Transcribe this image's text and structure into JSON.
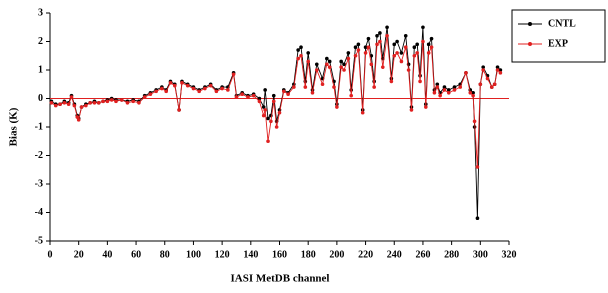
{
  "chart_data": {
    "type": "line",
    "xlabel": "IASI MetDB channel",
    "ylabel": "Bias (K)",
    "xlim": [
      0,
      320
    ],
    "xticks": [
      0,
      20,
      40,
      60,
      80,
      100,
      120,
      140,
      160,
      180,
      200,
      220,
      240,
      260,
      280,
      300,
      320
    ],
    "ylim": [
      -5,
      3
    ],
    "yticks": [
      -5,
      -4,
      -3,
      -2,
      -1,
      0,
      1,
      2,
      3
    ],
    "legend": "right",
    "x": [
      1,
      4,
      7,
      10,
      13,
      15,
      17,
      19,
      20,
      22,
      25,
      28,
      31,
      34,
      37,
      40,
      43,
      46,
      50,
      54,
      58,
      62,
      66,
      70,
      74,
      78,
      81,
      84,
      87,
      90,
      92,
      96,
      100,
      104,
      108,
      112,
      116,
      120,
      124,
      128,
      130,
      134,
      138,
      142,
      146,
      149,
      150,
      152,
      154,
      156,
      158,
      160,
      163,
      166,
      170,
      173,
      175,
      178,
      180,
      183,
      186,
      190,
      193,
      195,
      198,
      200,
      203,
      205,
      208,
      210,
      213,
      215,
      218,
      220,
      222,
      224,
      226,
      228,
      230,
      232,
      235,
      238,
      240,
      242,
      245,
      248,
      250,
      252,
      254,
      256,
      258,
      260,
      262,
      264,
      266,
      268,
      270,
      272,
      275,
      278,
      282,
      286,
      290,
      293,
      295,
      296,
      298,
      300,
      302,
      305,
      308,
      310,
      312,
      314
    ],
    "series": [
      {
        "name": "CNTL",
        "color": "#000000",
        "values": [
          -0.1,
          -0.2,
          -0.2,
          -0.1,
          -0.15,
          0.1,
          -0.2,
          -0.6,
          -0.7,
          -0.3,
          -0.2,
          -0.15,
          -0.1,
          -0.15,
          -0.1,
          -0.05,
          0,
          -0.05,
          -0.05,
          -0.1,
          -0.05,
          -0.1,
          0.1,
          0.2,
          0.3,
          0.4,
          0.3,
          0.6,
          0.5,
          -0.4,
          0.6,
          0.5,
          0.4,
          0.3,
          0.4,
          0.5,
          0.3,
          0.4,
          0.4,
          0.9,
          0.1,
          0.2,
          0.1,
          0.15,
          0,
          -0.3,
          0.3,
          -0.7,
          -0.6,
          0.1,
          -0.8,
          -0.4,
          0.3,
          0.2,
          0.5,
          1.7,
          1.8,
          0.6,
          1.6,
          0.3,
          1.2,
          0.7,
          1.4,
          1.3,
          0.6,
          -0.2,
          1.3,
          1.2,
          1.6,
          0.3,
          1.8,
          1.9,
          -0.4,
          1.8,
          2.1,
          1.5,
          0.6,
          2.2,
          2.3,
          1.4,
          2.5,
          0.7,
          1.9,
          2.0,
          1.6,
          2.2,
          1.2,
          -0.3,
          1.8,
          1.9,
          0.8,
          2.5,
          -0.2,
          1.9,
          2.1,
          0.3,
          0.5,
          0.2,
          0.4,
          0.3,
          0.4,
          0.5,
          0.9,
          0.3,
          0.2,
          -1.0,
          -4.2,
          0.5,
          1.1,
          0.8,
          0.4,
          0.5,
          1.1,
          1.0
        ]
      },
      {
        "name": "EXP",
        "color": "#e02020",
        "values": [
          -0.15,
          -0.25,
          -0.2,
          -0.15,
          -0.2,
          0.05,
          -0.25,
          -0.65,
          -0.75,
          -0.3,
          -0.25,
          -0.15,
          -0.15,
          -0.15,
          -0.1,
          -0.1,
          -0.05,
          -0.1,
          -0.05,
          -0.15,
          -0.1,
          -0.15,
          0.05,
          0.15,
          0.25,
          0.35,
          0.25,
          0.55,
          0.45,
          -0.4,
          0.55,
          0.45,
          0.35,
          0.25,
          0.35,
          0.45,
          0.25,
          0.35,
          0.3,
          0.85,
          0.05,
          0.15,
          0.05,
          0.1,
          -0.1,
          -0.6,
          -0.4,
          -1.5,
          -0.8,
          -0.1,
          -1.0,
          -0.5,
          0.25,
          0.15,
          0.4,
          1.4,
          1.5,
          0.4,
          1.3,
          0.2,
          1.0,
          0.5,
          1.2,
          1.1,
          0.4,
          -0.3,
          1.1,
          1.0,
          1.4,
          0.1,
          1.5,
          1.7,
          -0.5,
          1.6,
          1.8,
          1.2,
          0.4,
          1.9,
          2.0,
          1.1,
          2.2,
          0.6,
          1.5,
          1.6,
          1.3,
          1.8,
          1.0,
          -0.4,
          1.5,
          1.6,
          0.6,
          2.0,
          -0.3,
          1.6,
          1.8,
          0.2,
          0.4,
          0.1,
          0.3,
          0.2,
          0.3,
          0.4,
          0.9,
          0.2,
          0.1,
          -0.8,
          -2.4,
          0.5,
          1.0,
          0.7,
          0.4,
          0.5,
          1.0,
          0.9
        ]
      }
    ]
  }
}
